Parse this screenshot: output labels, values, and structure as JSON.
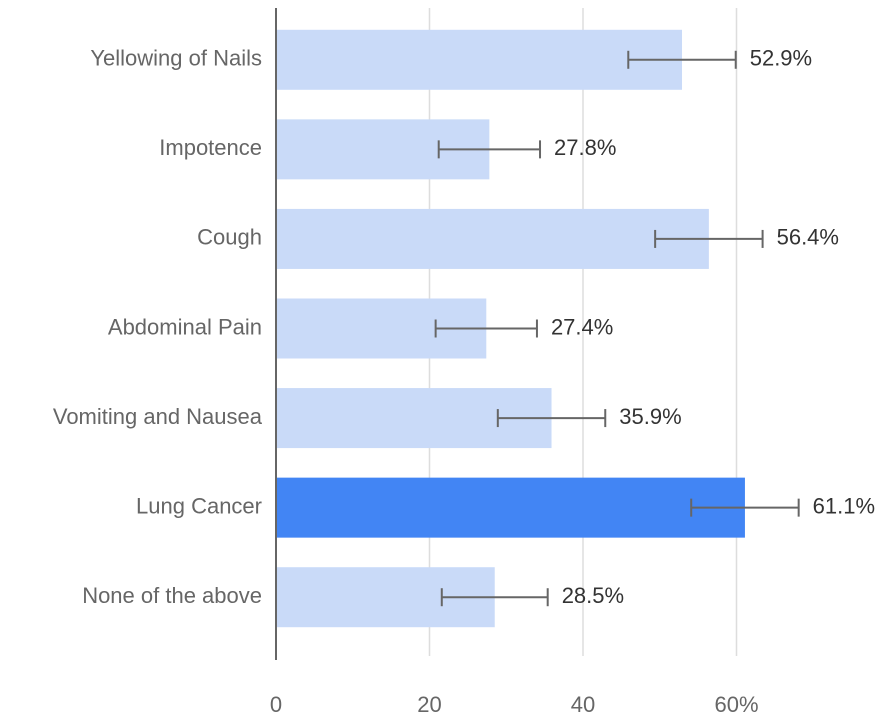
{
  "chart_data": {
    "type": "bar",
    "orientation": "horizontal",
    "categories": [
      "Yellowing of Nails",
      "Impotence",
      "Cough",
      "Abdominal Pain",
      "Vomiting and Nausea",
      "Lung Cancer",
      "None of the above"
    ],
    "values": [
      52.9,
      27.8,
      56.4,
      27.4,
      35.9,
      61.1,
      28.5
    ],
    "value_labels": [
      "52.9%",
      "27.8%",
      "56.4%",
      "27.4%",
      "35.9%",
      "61.1%",
      "28.5%"
    ],
    "errors": [
      7,
      6.6,
      7,
      6.6,
      7,
      7,
      6.9
    ],
    "colors": [
      "#c9daf8",
      "#c9daf8",
      "#c9daf8",
      "#c9daf8",
      "#c9daf8",
      "#4285f4",
      "#c9daf8"
    ],
    "xlim": [
      0,
      80
    ],
    "xticks": [
      0,
      20,
      40,
      {
        "value": 60,
        "label": "60%"
      }
    ],
    "grid": true
  }
}
